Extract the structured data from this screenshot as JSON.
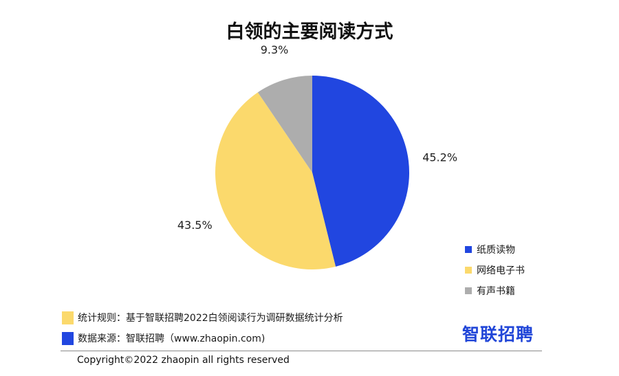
{
  "chart_data": {
    "type": "pie",
    "title": "白领的主要阅读方式",
    "categories": [
      "纸质读物",
      "网络电子书",
      "有声书籍"
    ],
    "values": [
      45.2,
      43.5,
      9.3
    ],
    "labels": [
      "45.2%",
      "43.5%",
      "9.3%"
    ],
    "colors": [
      "#2146e0",
      "#fbd96c",
      "#adadad"
    ],
    "legend_position": "bottom-right",
    "start_angle": "12 o'clock, clockwise"
  },
  "footer": {
    "rule_text": "统计规则：基于智联招聘2022白领阅读行为调研数据统计分析",
    "source_text": "数据来源：智联招聘（www.zhaopin.com)",
    "rule_swatch_color": "#fbd96c",
    "source_swatch_color": "#2146e0",
    "brand_logo": "智联招聘",
    "copyright": "Copyright©2022 zhaopin all rights reserved"
  }
}
